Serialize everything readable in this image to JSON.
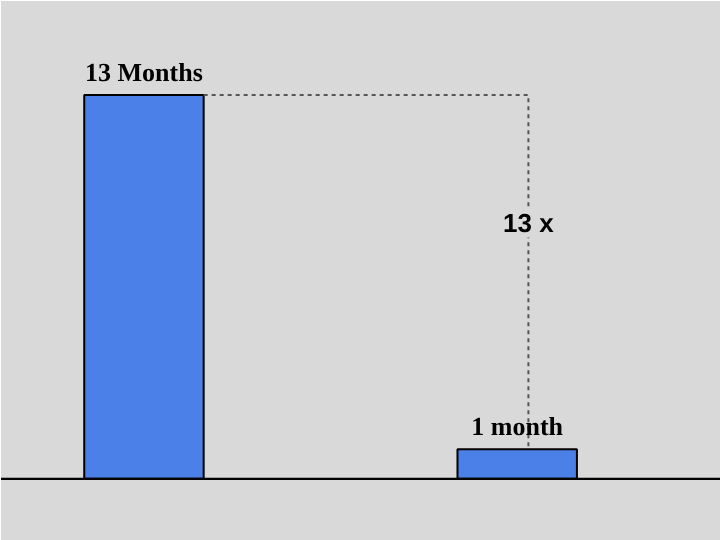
{
  "chart_data": {
    "type": "bar",
    "categories": [
      null,
      null
    ],
    "values": [
      13,
      1
    ],
    "value_labels": [
      "13 Months",
      "1 month"
    ],
    "color": "#4a80e8",
    "annotations": [
      "13 x"
    ],
    "grid": false
  }
}
